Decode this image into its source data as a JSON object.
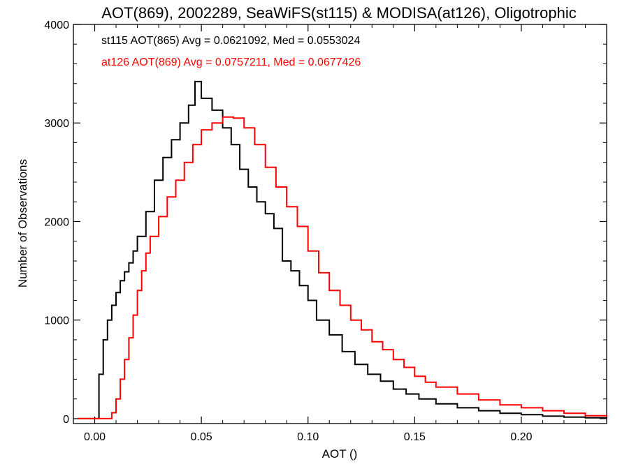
{
  "chart_data": {
    "type": "line",
    "title": "AOT(869), 2002289, SeaWiFS(st115) & MODISA(at126), Oligotrophic",
    "xlabel": "AOT ()",
    "ylabel": "Number of Observations",
    "xlim": [
      -0.01,
      0.24
    ],
    "ylim": [
      -50,
      4000
    ],
    "xticks": [
      0.0,
      0.05,
      0.1,
      0.15,
      0.2
    ],
    "xtick_labels": [
      "0.00",
      "0.05",
      "0.10",
      "0.15",
      "0.20"
    ],
    "yticks": [
      0,
      1000,
      2000,
      3000,
      4000
    ],
    "ytick_labels": [
      "0",
      "1000",
      "2000",
      "3000",
      "4000"
    ],
    "step_style": "histogram",
    "series": [
      {
        "label": "st115 AOT(865) Avg = 0.0621092, Med = 0.0553024",
        "color": "#000000",
        "points": [
          [
            -0.008,
            0
          ],
          [
            0.0,
            0
          ],
          [
            0.002,
            450
          ],
          [
            0.004,
            800
          ],
          [
            0.006,
            1000
          ],
          [
            0.008,
            1150
          ],
          [
            0.01,
            1280
          ],
          [
            0.012,
            1400
          ],
          [
            0.014,
            1490
          ],
          [
            0.016,
            1580
          ],
          [
            0.018,
            1700
          ],
          [
            0.02,
            1850
          ],
          [
            0.024,
            2100
          ],
          [
            0.028,
            2420
          ],
          [
            0.032,
            2650
          ],
          [
            0.036,
            2830
          ],
          [
            0.04,
            3000
          ],
          [
            0.044,
            3180
          ],
          [
            0.047,
            3420
          ],
          [
            0.05,
            3250
          ],
          [
            0.055,
            3130
          ],
          [
            0.06,
            2950
          ],
          [
            0.064,
            2780
          ],
          [
            0.068,
            2530
          ],
          [
            0.072,
            2350
          ],
          [
            0.076,
            2200
          ],
          [
            0.08,
            2080
          ],
          [
            0.084,
            1930
          ],
          [
            0.088,
            1600
          ],
          [
            0.092,
            1500
          ],
          [
            0.096,
            1350
          ],
          [
            0.1,
            1200
          ],
          [
            0.104,
            1000
          ],
          [
            0.11,
            850
          ],
          [
            0.116,
            680
          ],
          [
            0.122,
            550
          ],
          [
            0.128,
            450
          ],
          [
            0.134,
            380
          ],
          [
            0.14,
            300
          ],
          [
            0.146,
            250
          ],
          [
            0.152,
            200
          ],
          [
            0.16,
            150
          ],
          [
            0.17,
            110
          ],
          [
            0.18,
            80
          ],
          [
            0.19,
            55
          ],
          [
            0.2,
            40
          ],
          [
            0.21,
            25
          ],
          [
            0.22,
            15
          ],
          [
            0.23,
            8
          ],
          [
            0.24,
            3
          ]
        ]
      },
      {
        "label": "at126 AOT(869) Avg = 0.0757211, Med = 0.0677426",
        "color": "#ff0000",
        "points": [
          [
            -0.008,
            0
          ],
          [
            0.006,
            0
          ],
          [
            0.008,
            60
          ],
          [
            0.01,
            200
          ],
          [
            0.012,
            400
          ],
          [
            0.014,
            600
          ],
          [
            0.016,
            820
          ],
          [
            0.018,
            1050
          ],
          [
            0.02,
            1300
          ],
          [
            0.022,
            1500
          ],
          [
            0.024,
            1680
          ],
          [
            0.026,
            1850
          ],
          [
            0.03,
            2050
          ],
          [
            0.034,
            2250
          ],
          [
            0.038,
            2420
          ],
          [
            0.042,
            2600
          ],
          [
            0.046,
            2780
          ],
          [
            0.05,
            2930
          ],
          [
            0.055,
            3000
          ],
          [
            0.06,
            3060
          ],
          [
            0.065,
            3050
          ],
          [
            0.07,
            2950
          ],
          [
            0.075,
            2780
          ],
          [
            0.08,
            2550
          ],
          [
            0.085,
            2350
          ],
          [
            0.09,
            2150
          ],
          [
            0.095,
            1950
          ],
          [
            0.1,
            1700
          ],
          [
            0.105,
            1480
          ],
          [
            0.11,
            1300
          ],
          [
            0.115,
            1150
          ],
          [
            0.12,
            1000
          ],
          [
            0.125,
            900
          ],
          [
            0.13,
            780
          ],
          [
            0.135,
            700
          ],
          [
            0.14,
            600
          ],
          [
            0.145,
            520
          ],
          [
            0.15,
            430
          ],
          [
            0.155,
            370
          ],
          [
            0.16,
            320
          ],
          [
            0.17,
            250
          ],
          [
            0.18,
            190
          ],
          [
            0.19,
            140
          ],
          [
            0.2,
            110
          ],
          [
            0.21,
            80
          ],
          [
            0.22,
            55
          ],
          [
            0.23,
            30
          ],
          [
            0.24,
            15
          ]
        ]
      }
    ]
  },
  "colors": {
    "axis": "#000000",
    "series_1": "#000000",
    "series_2": "#ff0000"
  }
}
